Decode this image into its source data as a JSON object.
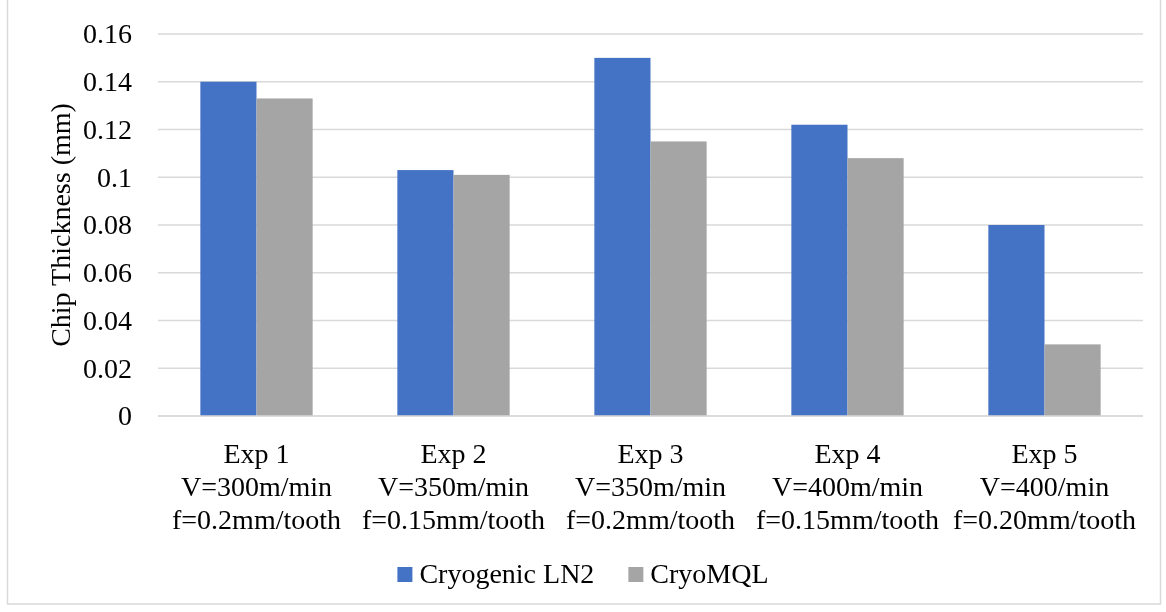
{
  "chart_data": {
    "type": "bar",
    "ylabel": "Chip Thickness (mm)",
    "categories": [
      "Exp 1\nV=300m/min\nf=0.2mm/tooth",
      "Exp 2\nV=350m/min\nf=0.15mm/tooth",
      "Exp 3\nV=350m/min\nf=0.2mm/tooth",
      "Exp 4\nV=400m/min\nf=0.15mm/tooth",
      "Exp 5\nV=400/min\nf=0.20mm/tooth"
    ],
    "series": [
      {
        "name": "Cryogenic LN2",
        "color": "#4472c4",
        "values": [
          0.14,
          0.103,
          0.15,
          0.122,
          0.08
        ]
      },
      {
        "name": "CryoMQL",
        "color": "#a5a5a5",
        "values": [
          0.133,
          0.101,
          0.115,
          0.108,
          0.03
        ]
      }
    ],
    "ylim": [
      0,
      0.16
    ],
    "yticks": [
      0,
      0.02,
      0.04,
      0.06,
      0.08,
      0.1,
      0.12,
      0.14,
      0.16
    ],
    "grid": "y",
    "legend": "bottom"
  }
}
